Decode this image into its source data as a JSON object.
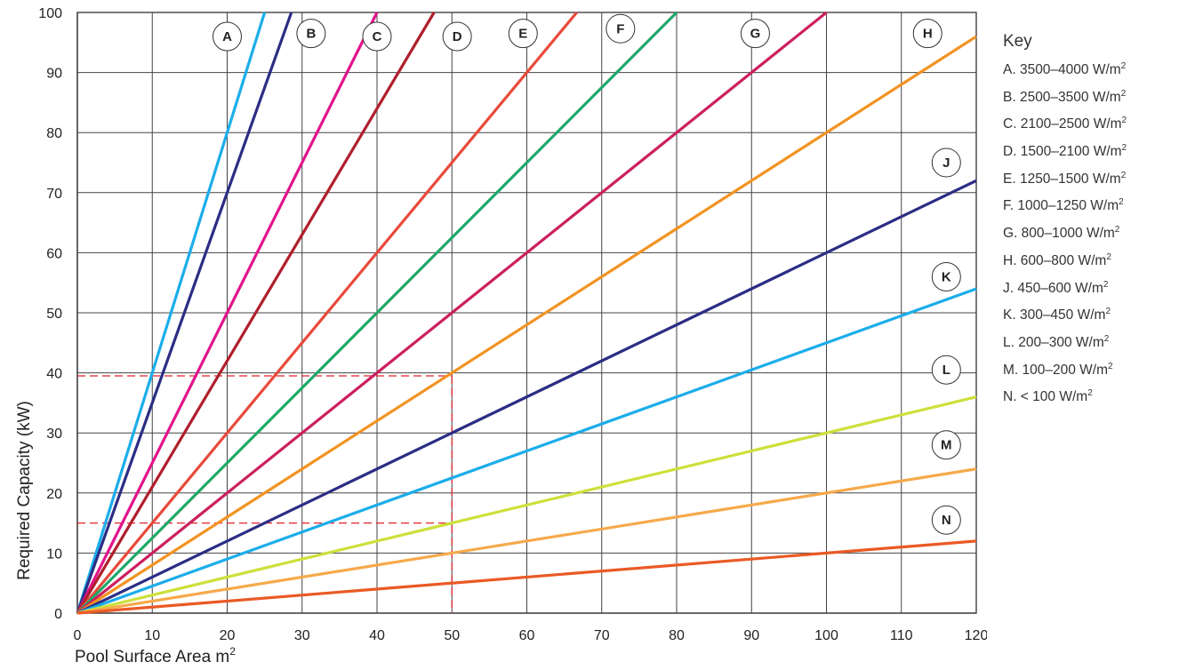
{
  "chart_data": {
    "type": "line",
    "xlabel": "Pool Surface Area m",
    "ylabel": "Required Capacity (kW)",
    "x_ticks": [
      0,
      10,
      20,
      30,
      40,
      50,
      60,
      70,
      80,
      90,
      100,
      110,
      120
    ],
    "y_ticks": [
      0,
      10,
      20,
      30,
      40,
      50,
      60,
      70,
      80,
      90,
      100
    ],
    "xlim": [
      0,
      120
    ],
    "ylim": [
      0,
      100
    ],
    "grid": true,
    "highlight_x_tick": 50,
    "highlight_color": "#e0202a",
    "reference_lines": [
      {
        "x": 50,
        "y": 39.5
      },
      {
        "x": 50,
        "y": 15
      }
    ],
    "series": [
      {
        "name": "A",
        "slope_w_per_m2": 4000,
        "color": "#1badea",
        "label_at": [
          20,
          96
        ]
      },
      {
        "name": "B",
        "slope_w_per_m2": 3500,
        "color": "#2b2d84",
        "label_at": [
          31.2,
          96.5
        ]
      },
      {
        "name": "C",
        "slope_w_per_m2": 2500,
        "color": "#e2148c",
        "label_at": [
          40,
          96
        ]
      },
      {
        "name": "D",
        "slope_w_per_m2": 2100,
        "color": "#b01f2c",
        "label_at": [
          50.7,
          96
        ]
      },
      {
        "name": "E",
        "slope_w_per_m2": 1500,
        "color": "#e84a3b",
        "label_at": [
          59.5,
          96.5
        ]
      },
      {
        "name": "F",
        "slope_w_per_m2": 1250,
        "color": "#1fa86b",
        "label_at": [
          72.5,
          97.3
        ]
      },
      {
        "name": "G",
        "slope_w_per_m2": 1000,
        "color": "#cc1f5e",
        "label_at": [
          90.5,
          96.5
        ]
      },
      {
        "name": "H",
        "slope_w_per_m2": 800,
        "color": "#f29322",
        "label_at": [
          113.5,
          96.5
        ]
      },
      {
        "name": "J",
        "slope_w_per_m2": 600,
        "color": "#2b2d84",
        "label_at": [
          116,
          75
        ]
      },
      {
        "name": "K",
        "slope_w_per_m2": 450,
        "color": "#1badea",
        "label_at": [
          116,
          56
        ]
      },
      {
        "name": "L",
        "slope_w_per_m2": 300,
        "color": "#cde03a",
        "label_at": [
          116,
          40.5
        ]
      },
      {
        "name": "M",
        "slope_w_per_m2": 200,
        "color": "#f6a94b",
        "label_at": [
          116,
          28
        ]
      },
      {
        "name": "N",
        "slope_w_per_m2": 100,
        "color": "#ea5a25",
        "label_at": [
          116,
          15.5
        ]
      }
    ]
  },
  "key": {
    "title": "Key",
    "unit_sup": "2",
    "items": [
      "A. 3500–4000 W/m",
      "B. 2500–3500 W/m",
      "C. 2100–2500 W/m",
      "D. 1500–2100 W/m",
      "E. 1250–1500 W/m",
      "F. 1000–1250 W/m",
      "G. 800–1000 W/m",
      "H. 600–800 W/m",
      "J. 450–600 W/m",
      "K. 300–450 W/m",
      "L. 200–300 W/m",
      "M. 100–200 W/m",
      "N. < 100 W/m"
    ]
  }
}
